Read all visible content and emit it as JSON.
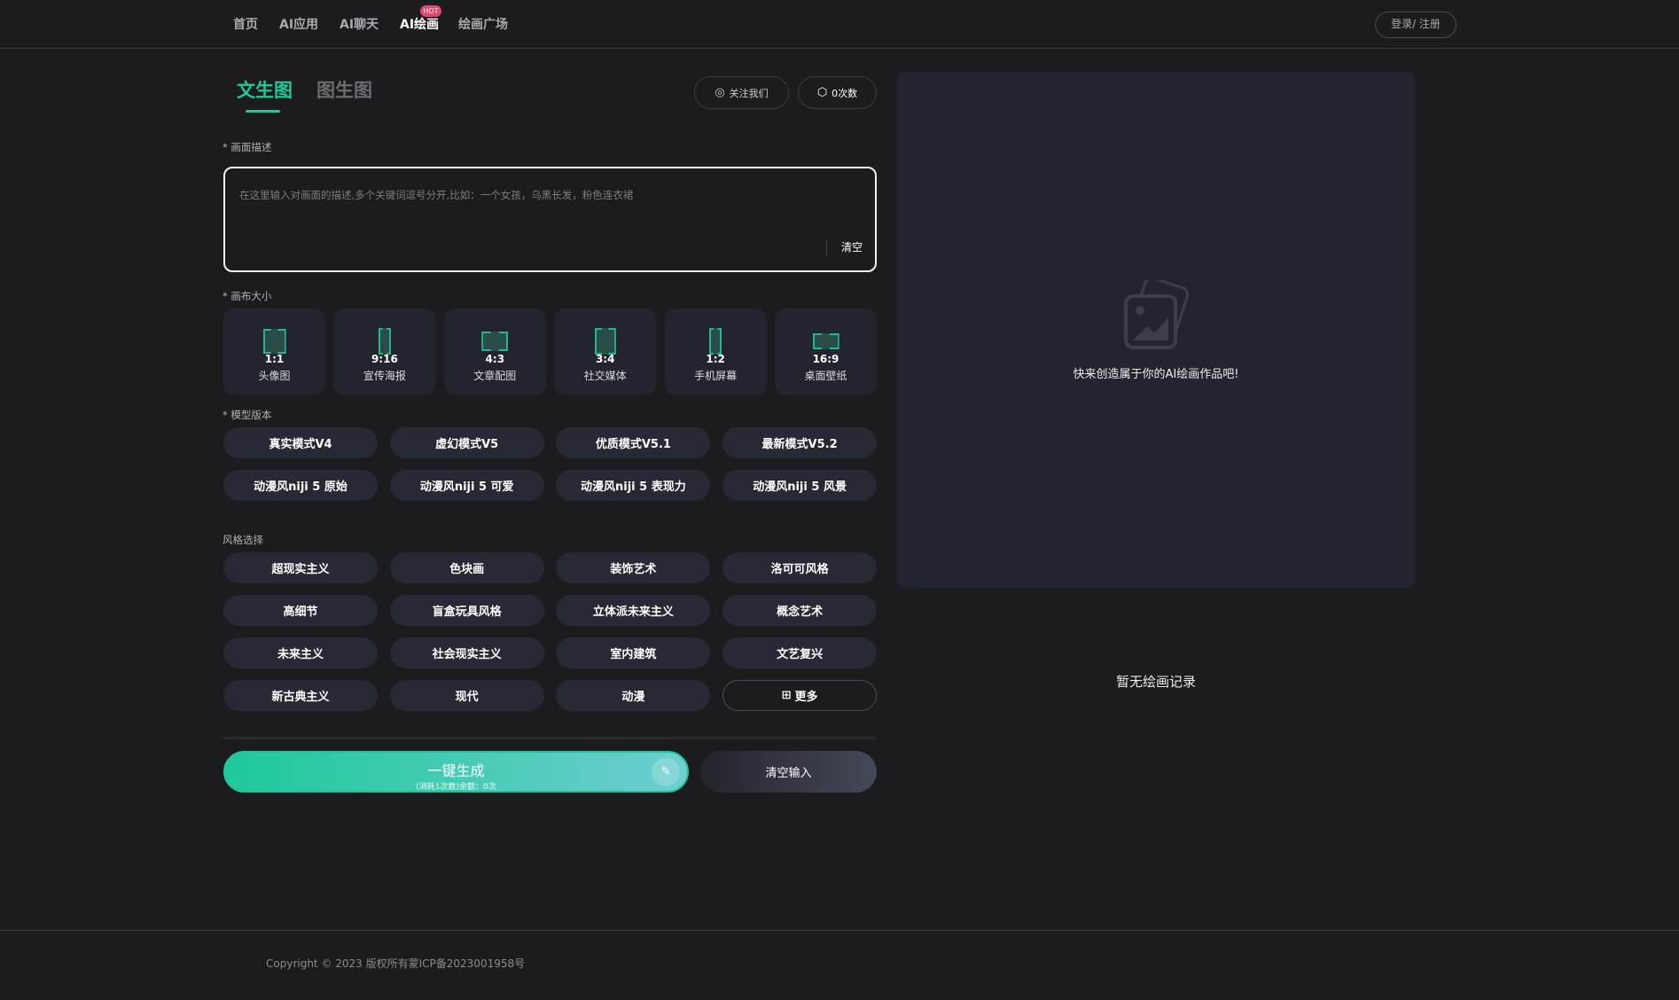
{
  "nav": {
    "items": [
      "首页",
      "AI应用",
      "AI聊天",
      "AI绘画",
      "绘画广场"
    ],
    "hot_badge": "HOT",
    "active": "AI绘画",
    "login": "登录/ 注册"
  },
  "tabs": {
    "text2img": "文生图",
    "img2img": "图生图"
  },
  "actions": {
    "follow": "关注我们",
    "count": "0次数"
  },
  "prompt": {
    "label": "* 画面描述",
    "placeholder": "在这里输入对画面的描述,多个关键词逗号分开,比如：一个女孩，乌黑长发，粉色连衣裙",
    "clear": "清空"
  },
  "canvas": {
    "label": "* 画布大小",
    "options": [
      {
        "ratio": "1:1",
        "name": "头像图"
      },
      {
        "ratio": "9:16",
        "name": "宣传海报"
      },
      {
        "ratio": "4:3",
        "name": "文章配图"
      },
      {
        "ratio": "3:4",
        "name": "社交媒体"
      },
      {
        "ratio": "1:2",
        "name": "手机屏幕"
      },
      {
        "ratio": "16:9",
        "name": "桌面壁纸"
      }
    ]
  },
  "model": {
    "label": "* 模型版本",
    "options": [
      "真实模式V4",
      "虚幻模式V5",
      "优质模式V5.1",
      "最新模式V5.2",
      "动漫风niji 5 原始",
      "动漫风niji 5 可爱",
      "动漫风niji 5 表现力",
      "动漫风niji 5 风景"
    ]
  },
  "style": {
    "label": "风格选择",
    "options": [
      "超现实主义",
      "色块画",
      "装饰艺术",
      "洛可可风格",
      "高细节",
      "盲盒玩具风格",
      "立体派未来主义",
      "概念艺术",
      "未来主义",
      "社会现实主义",
      "室内建筑",
      "文艺复兴",
      "新古典主义",
      "现代",
      "动漫"
    ],
    "more": "更多"
  },
  "generate": {
    "label": "一键生成",
    "sub": "(消耗1次数)余额：0次",
    "clear_input": "清空输入"
  },
  "preview": {
    "empty_text": "快来创造属于你的AI绘画作品吧!",
    "history_empty": "暂无绘画记录"
  },
  "footer": {
    "copyright": "Copyright © 2023 版权所有蒙ICP备2023001958号"
  },
  "colors": {
    "accent": "#1ec99a",
    "hot": "#e8436a",
    "bg": "#1c1c1f",
    "panel": "#22252f"
  }
}
